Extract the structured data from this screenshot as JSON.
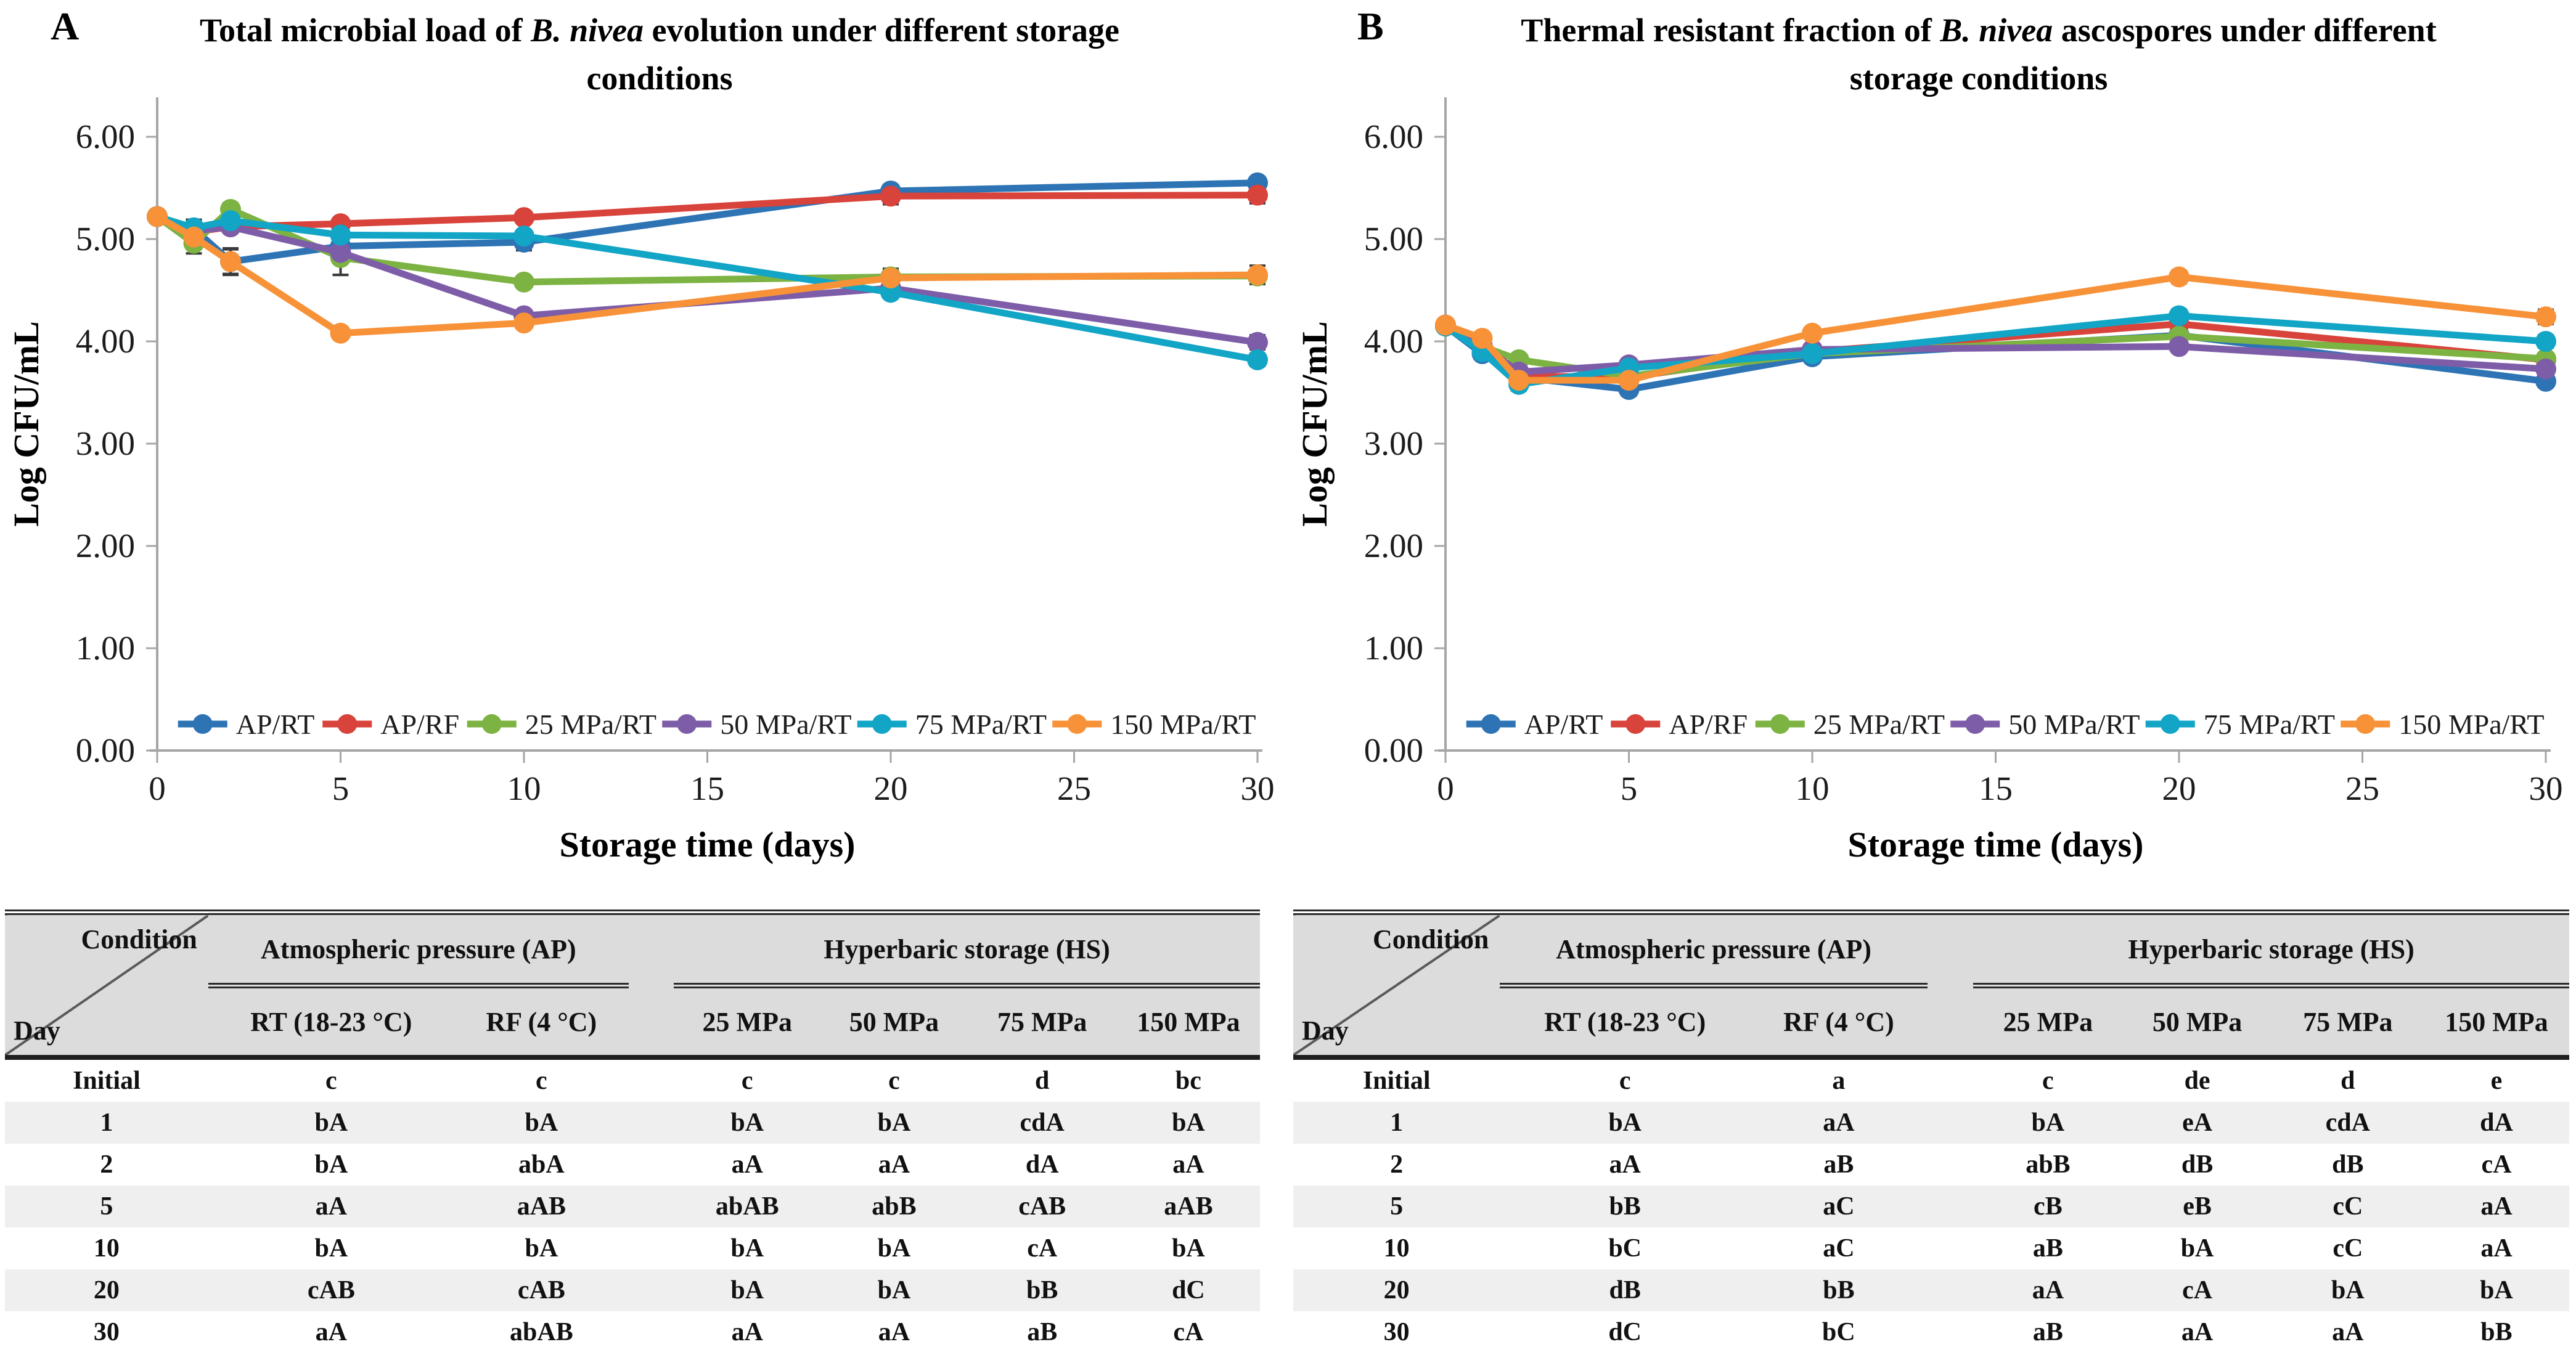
{
  "figure": {
    "panels": [
      {
        "label": "A",
        "title_pre": "Total microbial load of ",
        "title_italic": "B. nivea",
        "title_post": " evolution under different storage conditions"
      },
      {
        "label": "B",
        "title_pre": "Thermal resistant fraction of ",
        "title_italic": "B. nivea",
        "title_post": " ascospores under different storage conditions"
      }
    ]
  },
  "colors": {
    "axis": "#A6A6A6",
    "error_bar": "#3a3a3a",
    "table_header_bg": "#DCDCDC",
    "table_alt_row_bg": "#EFEFEF"
  },
  "chart_data": [
    {
      "type": "line",
      "title": "Total microbial load of B. nivea evolution under different storage conditions",
      "xlabel": "Storage time (days)",
      "ylabel": "Log CFU/mL",
      "x": [
        0,
        1,
        2,
        5,
        10,
        20,
        30
      ],
      "xticks": [
        "0",
        "5",
        "10",
        "15",
        "20",
        "25",
        "30"
      ],
      "xlim": [
        0,
        30
      ],
      "ylim": [
        0,
        6.45
      ],
      "yticks": [
        "0.00",
        "1.00",
        "2.00",
        "3.00",
        "4.00",
        "5.00",
        "6.00"
      ],
      "grid": false,
      "legend_position": "bottom-inside",
      "series": [
        {
          "name": "AP/RT",
          "color": "#2E74B5",
          "values": [
            5.22,
            5.1,
            4.78,
            4.93,
            4.97,
            5.47,
            5.55
          ],
          "errors": [
            0,
            0.09,
            0.12,
            0,
            0.08,
            0.06,
            0.05
          ]
        },
        {
          "name": "AP/RF",
          "color": "#D8433B",
          "values": [
            5.22,
            5.07,
            5.12,
            5.15,
            5.21,
            5.42,
            5.43
          ],
          "errors": [
            0,
            0,
            0,
            0,
            0.05,
            0.08,
            0.08
          ]
        },
        {
          "name": "25 MPa/RT",
          "color": "#7CB342",
          "values": [
            5.22,
            4.96,
            5.29,
            4.82,
            4.58,
            4.63,
            4.64
          ],
          "errors": [
            0,
            0.1,
            0.06,
            0.17,
            0,
            0.08,
            0
          ]
        },
        {
          "name": "50 MPa/RT",
          "color": "#7E5DA8",
          "values": [
            5.22,
            5.08,
            5.12,
            4.87,
            4.25,
            4.52,
            3.99
          ],
          "errors": [
            0,
            0,
            0,
            0.22,
            0,
            0,
            0.07
          ]
        },
        {
          "name": "75 MPa/RT",
          "color": "#12A5C6",
          "values": [
            5.22,
            5.11,
            5.18,
            5.04,
            5.03,
            4.48,
            3.82
          ],
          "errors": [
            0,
            0,
            0,
            0,
            0,
            0,
            0.06
          ]
        },
        {
          "name": "150 MPa/RT",
          "color": "#F79239",
          "values": [
            5.22,
            5.02,
            4.78,
            4.08,
            4.18,
            4.62,
            4.65
          ],
          "errors": [
            0,
            0,
            0.13,
            0.05,
            0,
            0.08,
            0.09
          ]
        }
      ]
    },
    {
      "type": "line",
      "title": "Thermal resistant fraction of B. nivea ascospores under different storage conditions",
      "xlabel": "Storage time (days)",
      "ylabel": "Log CFU/mL",
      "x": [
        0,
        1,
        2,
        5,
        10,
        20,
        30
      ],
      "xticks": [
        "0",
        "5",
        "10",
        "15",
        "20",
        "25",
        "30"
      ],
      "xlim": [
        0,
        30
      ],
      "ylim": [
        0,
        6.45
      ],
      "yticks": [
        "0.00",
        "1.00",
        "2.00",
        "3.00",
        "4.00",
        "5.00",
        "6.00"
      ],
      "grid": false,
      "legend_position": "bottom-inside",
      "series": [
        {
          "name": "AP/RT",
          "color": "#2E74B5",
          "values": [
            4.15,
            3.88,
            3.65,
            3.53,
            3.85,
            4.06,
            3.61
          ],
          "errors": [
            0,
            0,
            0,
            0.06,
            0,
            0,
            0.05
          ]
        },
        {
          "name": "AP/RF",
          "color": "#D8433B",
          "values": [
            4.15,
            3.95,
            3.66,
            3.65,
            3.9,
            4.17,
            3.82
          ],
          "errors": [
            0,
            0,
            0,
            0,
            0,
            0.05,
            0
          ]
        },
        {
          "name": "25 MPa/RT",
          "color": "#7CB342",
          "values": [
            4.15,
            3.95,
            3.82,
            3.66,
            3.88,
            4.05,
            3.83
          ],
          "errors": [
            0,
            0,
            0.05,
            0,
            0,
            0,
            0
          ]
        },
        {
          "name": "50 MPa/RT",
          "color": "#7E5DA8",
          "values": [
            4.16,
            3.96,
            3.7,
            3.77,
            3.92,
            3.95,
            3.73
          ],
          "errors": [
            0,
            0,
            0,
            0,
            0,
            0,
            0.05
          ]
        },
        {
          "name": "75 MPa/RT",
          "color": "#12A5C6",
          "values": [
            4.15,
            3.9,
            3.58,
            3.74,
            3.88,
            4.25,
            4.0
          ],
          "errors": [
            0,
            0,
            0.06,
            0,
            0,
            0.06,
            0.06
          ]
        },
        {
          "name": "150 MPa/RT",
          "color": "#F79239",
          "values": [
            4.16,
            4.03,
            3.62,
            3.62,
            4.08,
            4.63,
            4.24
          ],
          "errors": [
            0,
            0,
            0,
            0,
            0.05,
            0.06,
            0.07
          ]
        }
      ]
    }
  ],
  "tables": [
    {
      "corner_top": "Condition",
      "corner_bottom": "Day",
      "groups": [
        {
          "label": "Atmospheric pressure (AP)",
          "span": 2
        },
        {
          "label": "Hyperbaric storage (HS)",
          "span": 4
        }
      ],
      "columns": [
        "RT (18-23 °C)",
        "RF (4 °C)",
        "25 MPa",
        "50 MPa",
        "75 MPa",
        "150 MPa"
      ],
      "rows": [
        {
          "day": "Initial",
          "cells": [
            "c",
            "c",
            "c",
            "c",
            "d",
            "bc"
          ]
        },
        {
          "day": "1",
          "cells": [
            "bA",
            "bA",
            "bA",
            "bA",
            "cdA",
            "bA"
          ]
        },
        {
          "day": "2",
          "cells": [
            "bA",
            "abA",
            "aA",
            "aA",
            "dA",
            "aA"
          ]
        },
        {
          "day": "5",
          "cells": [
            "aA",
            "aAB",
            "abAB",
            "abB",
            "cAB",
            "aAB"
          ]
        },
        {
          "day": "10",
          "cells": [
            "bA",
            "bA",
            "bA",
            "bA",
            "cA",
            "bA"
          ]
        },
        {
          "day": "20",
          "cells": [
            "cAB",
            "cAB",
            "bA",
            "bA",
            "bB",
            "dC"
          ]
        },
        {
          "day": "30",
          "cells": [
            "aA",
            "abAB",
            "aA",
            "aA",
            "aB",
            "cA"
          ]
        }
      ]
    },
    {
      "corner_top": "Condition",
      "corner_bottom": "Day",
      "groups": [
        {
          "label": "Atmospheric pressure (AP)",
          "span": 2
        },
        {
          "label": "Hyperbaric storage (HS)",
          "span": 4
        }
      ],
      "columns": [
        "RT (18-23 °C)",
        "RF (4 °C)",
        "25 MPa",
        "50 MPa",
        "75 MPa",
        "150 MPa"
      ],
      "rows": [
        {
          "day": "Initial",
          "cells": [
            "c",
            "a",
            "c",
            "de",
            "d",
            "e"
          ]
        },
        {
          "day": "1",
          "cells": [
            "bA",
            "aA",
            "bA",
            "eA",
            "cdA",
            "dA"
          ]
        },
        {
          "day": "2",
          "cells": [
            "aA",
            "aB",
            "abB",
            "dB",
            "dB",
            "cA"
          ]
        },
        {
          "day": "5",
          "cells": [
            "bB",
            "aC",
            "cB",
            "eB",
            "cC",
            "aA"
          ]
        },
        {
          "day": "10",
          "cells": [
            "bC",
            "aC",
            "aB",
            "bA",
            "cC",
            "aA"
          ]
        },
        {
          "day": "20",
          "cells": [
            "dB",
            "bB",
            "aA",
            "cA",
            "bA",
            "bA"
          ]
        },
        {
          "day": "30",
          "cells": [
            "dC",
            "bC",
            "aB",
            "aA",
            "aA",
            "bB"
          ]
        }
      ]
    }
  ]
}
